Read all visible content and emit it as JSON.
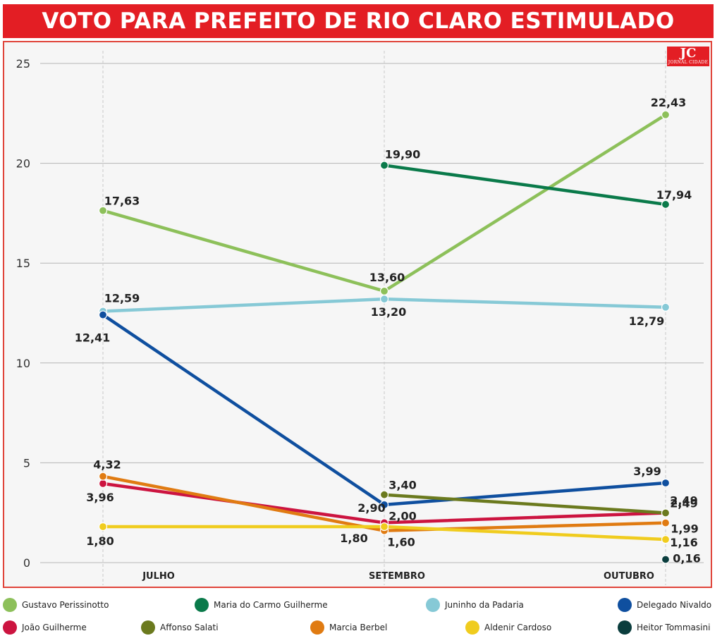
{
  "header": {
    "title": "VOTO PARA PREFEITO DE RIO CLARO ESTIMULADO"
  },
  "logo": {
    "text": "JC",
    "subtext": "JORNAL CIDADE",
    "color": "#e31e24"
  },
  "chart_data": {
    "type": "line",
    "title": "VOTO PARA PREFEITO DE RIO CLARO ESTIMULADO",
    "xlabel": "",
    "ylabel": "",
    "categories": [
      "JULHO",
      "SETEMBRO",
      "OUTUBRO"
    ],
    "yticks": [
      "0",
      "5",
      "10",
      "15",
      "20",
      "25"
    ],
    "ylim": [
      0,
      25
    ],
    "grid": true,
    "legend_position": "bottom",
    "series": [
      {
        "name": "Gustavo Perissinotto",
        "color": "#8dc05a",
        "values": [
          17.63,
          13.6,
          22.43
        ],
        "labels": [
          "17,63",
          "13,60",
          "22,43"
        ]
      },
      {
        "name": "Maria do Carmo Guilherme",
        "color": "#0a7a4a",
        "values": [
          null,
          19.9,
          17.94
        ],
        "labels": [
          "",
          "19,90",
          "17,94"
        ]
      },
      {
        "name": "Juninho da Padaria",
        "color": "#86c9d6",
        "values": [
          12.59,
          13.2,
          12.79
        ],
        "labels": [
          "12,59",
          "13,20",
          "12,79"
        ]
      },
      {
        "name": "Delegado Nivaldo",
        "color": "#0f4f9f",
        "values": [
          12.41,
          2.9,
          3.99
        ],
        "labels": [
          "12,41",
          "2,90",
          "3,99"
        ]
      },
      {
        "name": "João Guilherme",
        "color": "#cc1440",
        "values": [
          3.96,
          2.0,
          2.49
        ],
        "labels": [
          "3,96",
          "2,00",
          "2,49"
        ]
      },
      {
        "name": "Affonso Salati",
        "color": "#6b7a1e",
        "values": [
          null,
          3.4,
          2.49
        ],
        "labels": [
          "",
          "3,40",
          "2,49"
        ]
      },
      {
        "name": "Marcia Berbel",
        "color": "#e07b12",
        "values": [
          4.32,
          1.6,
          1.99
        ],
        "labels": [
          "4,32",
          "1,60",
          "1,99"
        ]
      },
      {
        "name": "Aldenir Cardoso",
        "color": "#f0cc1e",
        "values": [
          1.8,
          1.8,
          1.16
        ],
        "labels": [
          "1,80",
          "1,80",
          "1,16"
        ]
      },
      {
        "name": "Heitor Tommasini",
        "color": "#0a3d3d",
        "values": [
          null,
          null,
          0.16
        ],
        "labels": [
          "",
          "",
          "0,16"
        ]
      }
    ]
  }
}
